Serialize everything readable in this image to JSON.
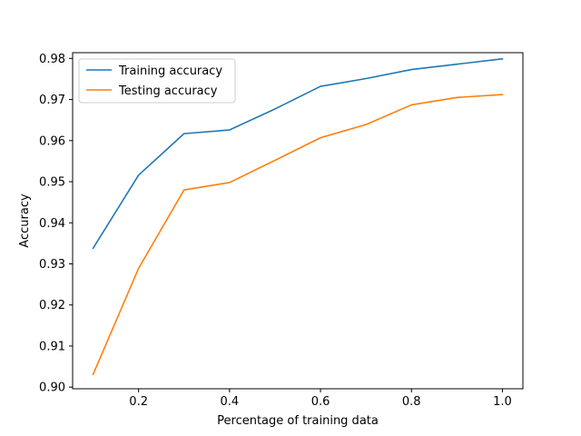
{
  "chart_data": {
    "type": "line",
    "title": "",
    "xlabel": "Percentage of training data",
    "ylabel": "Accuracy",
    "xlim": [
      0.055,
      1.045
    ],
    "ylim": [
      0.8996,
      0.9814
    ],
    "xticks": [
      0.2,
      0.4,
      0.6,
      0.8,
      1.0
    ],
    "xtick_labels": [
      "0.2",
      "0.4",
      "0.6",
      "0.8",
      "1.0"
    ],
    "yticks": [
      0.9,
      0.91,
      0.92,
      0.93,
      0.94,
      0.95,
      0.96,
      0.97,
      0.98
    ],
    "ytick_labels": [
      "0.90",
      "0.91",
      "0.92",
      "0.93",
      "0.94",
      "0.95",
      "0.96",
      "0.97",
      "0.98"
    ],
    "grid": false,
    "legend_position": "top-left",
    "x": [
      0.1,
      0.2,
      0.3,
      0.4,
      0.5,
      0.6,
      0.7,
      0.8,
      0.9,
      1.0
    ],
    "series": [
      {
        "name": "Training accuracy",
        "color": "#1f77b4",
        "values": [
          0.9338,
          0.9516,
          0.9617,
          0.9626,
          0.9677,
          0.9732,
          0.9751,
          0.9773,
          0.9786,
          0.9799
        ]
      },
      {
        "name": "Testing accuracy",
        "color": "#ff7f0e",
        "values": [
          0.9031,
          0.9289,
          0.948,
          0.9498,
          0.9552,
          0.9607,
          0.9639,
          0.9687,
          0.9705,
          0.9712
        ]
      }
    ]
  }
}
